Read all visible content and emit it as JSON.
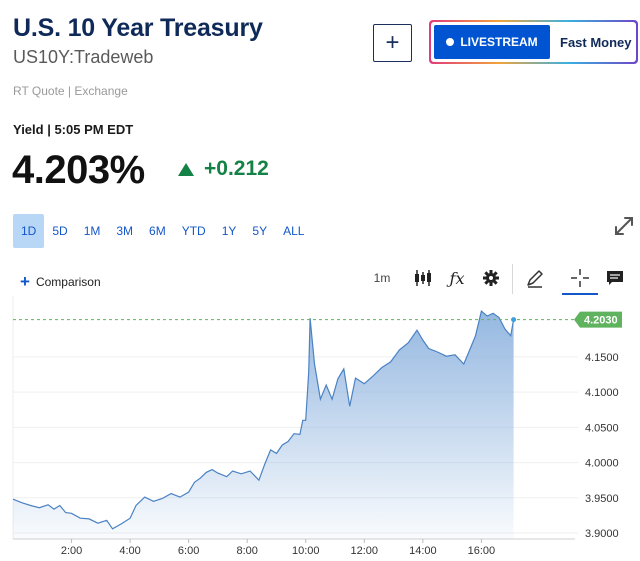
{
  "header": {
    "title": "U.S. 10 Year Treasury",
    "symbol": "US10Y:Tradeweb",
    "source": "RT Quote | Exchange"
  },
  "actions": {
    "add_label": "+",
    "livestream_label": "LIVESTREAM",
    "fast_money_label": "Fast Money"
  },
  "quote": {
    "yield_label": "Yield | 5:05 PM EDT",
    "price": "4.203%",
    "change": "+0.212",
    "change_color": "#148246"
  },
  "ranges": [
    "1D",
    "5D",
    "1M",
    "3M",
    "6M",
    "YTD",
    "1Y",
    "5Y",
    "ALL"
  ],
  "active_range": "1D",
  "toolbar": {
    "comparison_label": "Comparison",
    "interval_label": "1m",
    "icons": [
      "candlestick-icon",
      "fx-icon",
      "gear-icon",
      "pencil-icon",
      "crosshair-icon",
      "comment-icon"
    ]
  },
  "chart_data": {
    "type": "area",
    "x_ticks": [
      "2:00",
      "4:00",
      "6:00",
      "8:00",
      "10:00",
      "12:00",
      "14:00",
      "16:00"
    ],
    "x_tick_hours": [
      2,
      4,
      6,
      8,
      10,
      12,
      14,
      16
    ],
    "y_ticks": [
      "3.9000",
      "3.9500",
      "4.0000",
      "4.0500",
      "4.1000",
      "4.1500"
    ],
    "y_tick_values": [
      3.9,
      3.95,
      4.0,
      4.05,
      4.1,
      4.15
    ],
    "xlim": [
      0,
      19.3
    ],
    "ylim": [
      3.8915,
      4.2365
    ],
    "last_value_label": "4.2030",
    "last_value": 4.203,
    "line_color": "#4a82c4",
    "fill_color": "#8fb4df",
    "last_tag_color": "#5fb35f",
    "points": [
      [
        0.0,
        3.948
      ],
      [
        0.3,
        3.943
      ],
      [
        0.6,
        3.939
      ],
      [
        0.9,
        3.936
      ],
      [
        1.2,
        3.94
      ],
      [
        1.4,
        3.934
      ],
      [
        1.6,
        3.939
      ],
      [
        1.8,
        3.929
      ],
      [
        2.0,
        3.928
      ],
      [
        2.3,
        3.921
      ],
      [
        2.6,
        3.92
      ],
      [
        2.9,
        3.914
      ],
      [
        3.2,
        3.918
      ],
      [
        3.4,
        3.906
      ],
      [
        3.7,
        3.913
      ],
      [
        4.0,
        3.921
      ],
      [
        4.2,
        3.939
      ],
      [
        4.5,
        3.951
      ],
      [
        4.8,
        3.945
      ],
      [
        5.1,
        3.949
      ],
      [
        5.4,
        3.956
      ],
      [
        5.7,
        3.951
      ],
      [
        6.0,
        3.958
      ],
      [
        6.2,
        3.972
      ],
      [
        6.4,
        3.978
      ],
      [
        6.6,
        3.986
      ],
      [
        6.8,
        3.99
      ],
      [
        7.0,
        3.985
      ],
      [
        7.3,
        3.98
      ],
      [
        7.5,
        3.988
      ],
      [
        7.8,
        3.984
      ],
      [
        8.1,
        3.988
      ],
      [
        8.4,
        3.975
      ],
      [
        8.6,
        3.998
      ],
      [
        8.8,
        4.018
      ],
      [
        9.0,
        4.013
      ],
      [
        9.2,
        4.025
      ],
      [
        9.4,
        4.03
      ],
      [
        9.6,
        4.041
      ],
      [
        9.8,
        4.04
      ],
      [
        9.9,
        4.06
      ],
      [
        10.0,
        4.06
      ],
      [
        10.1,
        4.128
      ],
      [
        10.15,
        4.205
      ],
      [
        10.3,
        4.14
      ],
      [
        10.5,
        4.09
      ],
      [
        10.7,
        4.11
      ],
      [
        10.9,
        4.09
      ],
      [
        11.1,
        4.119
      ],
      [
        11.3,
        4.133
      ],
      [
        11.5,
        4.08
      ],
      [
        11.7,
        4.12
      ],
      [
        12.0,
        4.112
      ],
      [
        12.3,
        4.123
      ],
      [
        12.6,
        4.135
      ],
      [
        12.9,
        4.143
      ],
      [
        13.2,
        4.16
      ],
      [
        13.5,
        4.17
      ],
      [
        13.8,
        4.188
      ],
      [
        14.0,
        4.174
      ],
      [
        14.2,
        4.162
      ],
      [
        14.5,
        4.157
      ],
      [
        14.8,
        4.151
      ],
      [
        15.1,
        4.153
      ],
      [
        15.4,
        4.14
      ],
      [
        15.6,
        4.16
      ],
      [
        15.8,
        4.18
      ],
      [
        16.0,
        4.215
      ],
      [
        16.2,
        4.208
      ],
      [
        16.4,
        4.212
      ],
      [
        16.6,
        4.206
      ],
      [
        16.8,
        4.19
      ],
      [
        17.0,
        4.18
      ],
      [
        17.1,
        4.203
      ]
    ]
  }
}
